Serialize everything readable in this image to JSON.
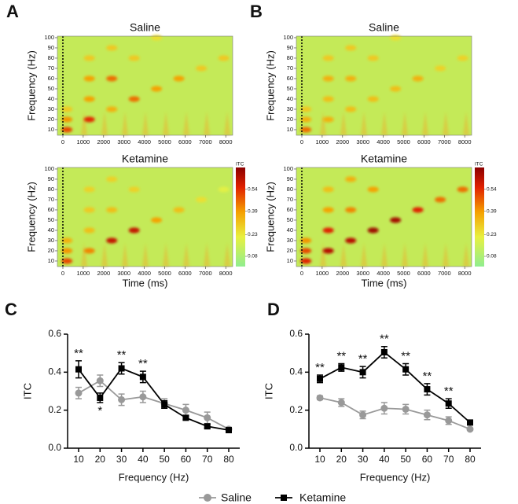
{
  "chart_data": [
    {
      "type": "heatmap",
      "panel": "A",
      "title": "Saline",
      "ylabel": "Frequency (Hz)",
      "xlim": [
        -270,
        8340
      ],
      "ylim": [
        4.6,
        101.5
      ],
      "xticks": [
        0,
        1000,
        2000,
        3000,
        4000,
        5000,
        6000,
        7000,
        8000
      ],
      "yticks": [
        10,
        20,
        30,
        40,
        50,
        60,
        70,
        80,
        90,
        100
      ],
      "clim": [
        0.01,
        0.69
      ],
      "x": [
        200,
        200,
        200,
        1300,
        1300,
        1300,
        1300,
        2400,
        2400,
        2400,
        3500,
        3500,
        4600,
        4600,
        5700,
        6800,
        7900
      ],
      "y": [
        10,
        20,
        30,
        20,
        40,
        60,
        80,
        30,
        60,
        90,
        40,
        80,
        50,
        100,
        60,
        70,
        80
      ],
      "values": [
        0.5,
        0.4,
        0.3,
        0.54,
        0.38,
        0.38,
        0.3,
        0.35,
        0.45,
        0.3,
        0.45,
        0.3,
        0.38,
        0.25,
        0.38,
        0.3,
        0.3
      ]
    },
    {
      "type": "heatmap",
      "title": "Ketamine",
      "ylabel": "Frequency (Hz)",
      "xlabel": "Time (ms)",
      "xlim": [
        -270,
        8340
      ],
      "ylim": [
        4.6,
        101.5
      ],
      "xticks": [
        0,
        1000,
        2000,
        3000,
        4000,
        5000,
        6000,
        7000,
        8000
      ],
      "yticks": [
        10,
        20,
        30,
        40,
        50,
        60,
        70,
        80,
        90,
        100
      ],
      "clim": [
        0.01,
        0.69
      ],
      "colorbar": {
        "label": "ITC",
        "ticks": [
          0.08,
          0.23,
          0.39,
          0.54
        ]
      },
      "x": [
        200,
        200,
        200,
        1300,
        1300,
        1300,
        1300,
        2400,
        2400,
        2400,
        3500,
        3500,
        4600,
        5700,
        6800,
        7900
      ],
      "y": [
        10,
        20,
        30,
        20,
        40,
        60,
        80,
        30,
        60,
        90,
        40,
        80,
        50,
        60,
        70,
        80
      ],
      "values": [
        0.5,
        0.4,
        0.35,
        0.42,
        0.32,
        0.3,
        0.28,
        0.6,
        0.32,
        0.28,
        0.6,
        0.28,
        0.38,
        0.32,
        0.25,
        0.2
      ]
    },
    {
      "type": "heatmap",
      "panel": "B",
      "title": "Saline",
      "ylabel": "Frequency (Hz)",
      "xlim": [
        -270,
        8340
      ],
      "ylim": [
        4.6,
        101.5
      ],
      "xticks": [
        0,
        1000,
        2000,
        3000,
        4000,
        5000,
        6000,
        7000,
        8000
      ],
      "yticks": [
        10,
        20,
        30,
        40,
        50,
        60,
        70,
        80,
        90,
        100
      ],
      "clim": [
        0.01,
        0.69
      ],
      "x": [
        200,
        200,
        200,
        1300,
        1300,
        1300,
        1300,
        2400,
        2400,
        2400,
        3500,
        3500,
        4600,
        4600,
        5700,
        6800,
        7900
      ],
      "y": [
        10,
        20,
        30,
        20,
        40,
        60,
        80,
        30,
        60,
        90,
        40,
        80,
        50,
        100,
        60,
        70,
        80
      ],
      "values": [
        0.45,
        0.35,
        0.3,
        0.35,
        0.32,
        0.35,
        0.3,
        0.32,
        0.35,
        0.3,
        0.32,
        0.3,
        0.32,
        0.25,
        0.35,
        0.28,
        0.28
      ]
    },
    {
      "type": "heatmap",
      "title": "Ketamine",
      "ylabel": "Frequency (Hz)",
      "xlabel": "Time (ms)",
      "xlim": [
        -270,
        8340
      ],
      "ylim": [
        4.6,
        101.5
      ],
      "xticks": [
        0,
        1000,
        2000,
        3000,
        4000,
        5000,
        6000,
        7000,
        8000
      ],
      "yticks": [
        10,
        20,
        30,
        40,
        50,
        60,
        70,
        80,
        90,
        100
      ],
      "clim": [
        0.01,
        0.69
      ],
      "colorbar": {
        "label": "ITC",
        "ticks": [
          0.08,
          0.23,
          0.39,
          0.54
        ]
      },
      "x": [
        200,
        200,
        200,
        1300,
        1300,
        1300,
        1300,
        2400,
        2400,
        2400,
        3500,
        3500,
        4600,
        5700,
        6800,
        7900
      ],
      "y": [
        10,
        20,
        30,
        20,
        40,
        60,
        80,
        30,
        60,
        90,
        40,
        80,
        50,
        60,
        70,
        80
      ],
      "values": [
        0.55,
        0.5,
        0.4,
        0.62,
        0.55,
        0.38,
        0.32,
        0.62,
        0.42,
        0.35,
        0.66,
        0.38,
        0.65,
        0.55,
        0.45,
        0.45
      ]
    },
    {
      "type": "line",
      "panel": "C",
      "xlabel": "Frequency (Hz)",
      "ylabel": "ITC",
      "categories": [
        "10",
        "20",
        "30",
        "40",
        "50",
        "60",
        "70",
        "80"
      ],
      "ylim": [
        0,
        0.6
      ],
      "yticks": [
        {
          "value": 0,
          "label": "0.0"
        },
        0.2,
        0.4,
        0.6
      ],
      "series": [
        {
          "name": "Saline",
          "color": "#999999",
          "marker": "circle",
          "values": [
            0.29,
            0.355,
            0.255,
            0.27,
            0.235,
            0.2,
            0.16,
            0.1
          ],
          "errors": [
            0.03,
            0.03,
            0.03,
            0.03,
            0.025,
            0.03,
            0.03,
            0.01
          ]
        },
        {
          "name": "Ketamine",
          "color": "#000000",
          "marker": "square",
          "values": [
            0.415,
            0.265,
            0.42,
            0.375,
            0.23,
            0.16,
            0.115,
            0.095
          ],
          "errors": [
            0.045,
            0.025,
            0.03,
            0.03,
            0.02,
            0.01,
            0.01,
            0.005
          ]
        }
      ],
      "significance": [
        "**",
        "*",
        "**",
        "**",
        null,
        null,
        null,
        null
      ]
    },
    {
      "type": "line",
      "panel": "D",
      "xlabel": "Frequency (Hz)",
      "ylabel": "ITC",
      "categories": [
        "10",
        "20",
        "30",
        "40",
        "50",
        "60",
        "70",
        "80"
      ],
      "ylim": [
        0,
        0.6
      ],
      "yticks": [
        {
          "value": 0,
          "label": "0.0"
        },
        0.2,
        0.4,
        0.6
      ],
      "series": [
        {
          "color": "#999999",
          "marker": "circle",
          "values": [
            0.265,
            0.24,
            0.175,
            0.21,
            0.205,
            0.175,
            0.145,
            0.1
          ],
          "errors": [
            0.01,
            0.02,
            0.02,
            0.03,
            0.025,
            0.025,
            0.02,
            0.005
          ]
        },
        {
          "color": "#000000",
          "marker": "square",
          "values": [
            0.365,
            0.425,
            0.4,
            0.505,
            0.415,
            0.31,
            0.235,
            0.135
          ],
          "errors": [
            0.02,
            0.02,
            0.03,
            0.03,
            0.03,
            0.03,
            0.025,
            0.01
          ]
        }
      ],
      "significance": [
        "**",
        "**",
        "**",
        "**",
        "**",
        "**",
        "**",
        null
      ]
    }
  ]
}
